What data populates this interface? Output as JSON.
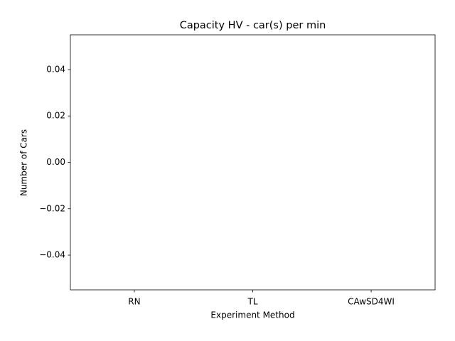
{
  "chart_data": {
    "type": "bar",
    "title": "Capacity HV - car(s) per min",
    "xlabel": "Experiment Method",
    "ylabel": "Number of Cars",
    "categories": [
      "RN",
      "TL",
      "CAwSD4WI"
    ],
    "values": [
      0,
      0,
      0
    ],
    "color": "#1f77b4",
    "ylim": [
      -0.055,
      0.055
    ],
    "yticks": [
      {
        "value": -0.04,
        "label": "−0.04"
      },
      {
        "value": -0.02,
        "label": "−0.02"
      },
      {
        "value": 0,
        "label": "0.00"
      },
      0.02,
      0.04
    ],
    "grid": false
  }
}
